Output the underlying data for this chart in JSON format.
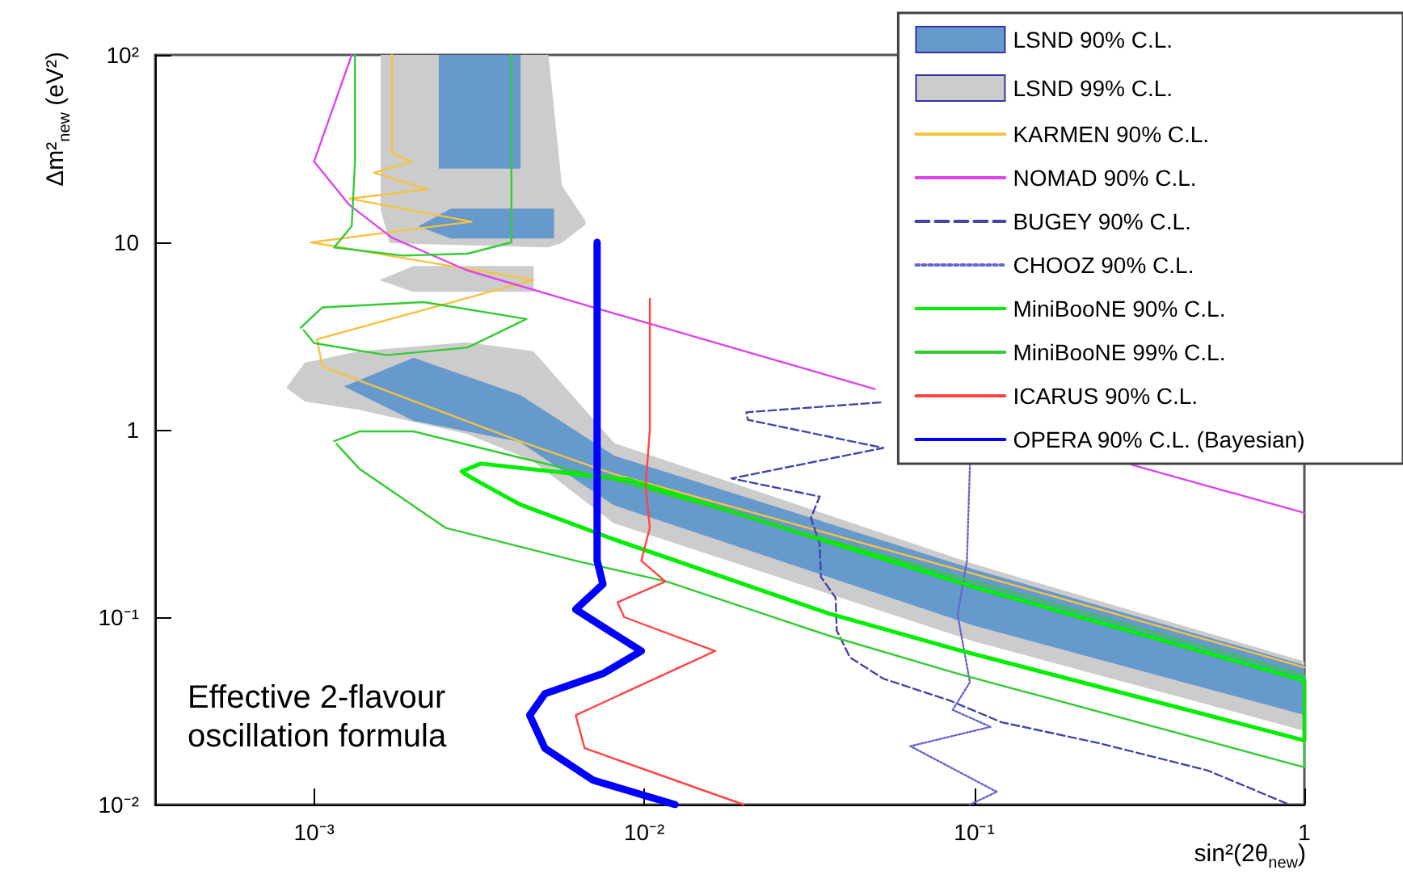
{
  "chart_data": {
    "type": "line",
    "xlabel": "sin²(2θ$_{new}$)",
    "ylabel": "Δm²$_{new}$ (eV²)",
    "log": "xy",
    "grid": false,
    "legend": "top right",
    "marker": "none",
    "xlim": [
      0.00033,
      1
    ],
    "ylim": [
      0.01,
      100
    ],
    "xticks": [
      {
        "value": 0.001,
        "label": "10⁻³"
      },
      {
        "value": 0.01,
        "label": "10⁻²"
      },
      {
        "value": 0.1,
        "label": "10⁻¹"
      },
      1
    ],
    "yticks": [
      {
        "value": 0.01,
        "label": "10⁻²"
      },
      {
        "value": 0.1,
        "label": "10⁻¹"
      },
      1,
      10,
      {
        "value": 100,
        "label": "10²"
      }
    ],
    "annotations": [
      "Effective 2-flavour oscillation formula"
    ],
    "series": [
      {
        "name": "LSND 90% C.L.",
        "type": "area",
        "color": "#6699cc",
        "x": [
          0.00125,
          0.002,
          0.0042,
          0.0081,
          0.1,
          1,
          1,
          0.1,
          0.0081,
          0.0042,
          0.002,
          null,
          0.0024,
          0.0042,
          0.0042,
          0.0024,
          null,
          0.0021,
          0.0026,
          0.0053,
          0.0053,
          0.0026
        ],
        "values": [
          1.7,
          2.4,
          1.52,
          0.72,
          0.178,
          0.055,
          0.0304,
          0.091,
          0.4,
          0.87,
          1.13,
          null,
          100,
          100,
          25,
          25,
          null,
          12.2,
          15,
          15,
          10.6,
          10.6
        ]
      },
      {
        "name": "LSND 99% C.L.",
        "type": "area",
        "color": "#cccccc",
        "x": [
          0.00083,
          0.00094,
          0.00137,
          0.0029,
          0.0046,
          0.0081,
          0.1,
          1,
          1,
          0.1,
          0.0081,
          0.0046,
          0.0029,
          0.00137,
          0.00094,
          null,
          0.0016,
          0.0051,
          0.0056,
          0.0066,
          0.0066,
          0.0056,
          0.0051,
          0.0017,
          0.0016,
          null,
          0.0016,
          0.002,
          0.0046,
          0.0046,
          0.002
        ],
        "values": [
          1.68,
          2.26,
          2.6,
          2.9,
          2.6,
          0.84,
          0.19,
          0.0575,
          0.025,
          0.075,
          0.32,
          0.69,
          0.96,
          1.29,
          1.43,
          null,
          100,
          100,
          20,
          13,
          12.5,
          10,
          9.5,
          10,
          15,
          null,
          6.3,
          7.4,
          7.4,
          5.5,
          5.5
        ]
      },
      {
        "name": "KARMEN 90% C.L.",
        "color": "#f5c242",
        "x": [
          0.00172,
          0.00172,
          0.00197,
          0.00152,
          0.0022,
          0.00128,
          0.003,
          0.00098,
          0.0046,
          0.00102,
          0.00106,
          0.0042,
          0.0081,
          0.1,
          1
        ],
        "values": [
          100,
          30,
          27,
          23.5,
          19.2,
          17.1,
          12.9,
          10,
          6.3,
          3.04,
          2.17,
          0.87,
          0.58,
          0.17,
          0.054
        ]
      },
      {
        "name": "NOMAD 90% C.L.",
        "color": "#dd44ee",
        "x": [
          0.0013,
          0.001,
          0.00128,
          0.00172,
          0.0029,
          0.007,
          0.05,
          null,
          0.3,
          1
        ],
        "values": [
          100,
          27,
          15.8,
          10.6,
          7.1,
          4.5,
          1.65,
          null,
          0.65,
          0.36
        ]
      },
      {
        "name": "BUGEY 90% C.L.",
        "color": "#4444aa",
        "line_style": "dashed",
        "x": [
          0.052,
          0.0204,
          0.0206,
          0.053,
          0.0184,
          0.034,
          0.032,
          0.034,
          0.0343,
          0.038,
          0.0383,
          0.042,
          0.053,
          0.084,
          0.121,
          0.238,
          0.51,
          0.9
        ],
        "values": [
          1.4,
          1.24,
          1.13,
          0.8,
          0.55,
          0.44,
          0.34,
          0.245,
          0.164,
          0.127,
          0.085,
          0.061,
          0.047,
          0.036,
          0.0275,
          0.0213,
          0.0152,
          0.01
        ]
      },
      {
        "name": "CHOOZ 90% C.L.",
        "color": "#6666cc",
        "line_style": "dotted",
        "x": [
          0.097,
          0.095,
          0.089,
          0.097,
          0.086,
          0.112,
          0.064,
          0.117,
          0.097
        ],
        "values": [
          0.66,
          0.2,
          0.103,
          0.045,
          0.032,
          0.026,
          0.0205,
          0.0117,
          0.01
        ]
      },
      {
        "name": "MiniBooNE 90% C.L.",
        "color": "#00ee00",
        "x": [
          0.0028,
          0.0032,
          0.009,
          0.1,
          1,
          1,
          0.089,
          0.036,
          0.0081,
          0.0042,
          0.0032,
          0.00285
        ],
        "values": [
          0.6,
          0.66,
          0.54,
          0.145,
          0.046,
          0.022,
          0.067,
          0.105,
          0.26,
          0.4,
          0.52,
          0.585
        ]
      },
      {
        "name": "MiniBooNE 99% C.L.",
        "color": "#33cc33",
        "x": [
          0.00133,
          0.00133,
          0.0013,
          0.00115,
          0.00186,
          0.00292,
          0.00396,
          0.00396,
          0.00396,
          null,
          0.00091,
          0.00106,
          0.00215,
          0.0044,
          0.00292,
          0.00166,
          0.001,
          0.00093,
          null,
          0.00115,
          0.00137,
          0.002,
          0.0042,
          0.0081,
          0.036,
          0.1,
          1,
          1,
          0.089,
          0.036,
          0.0117,
          0.0062,
          0.0025,
          0.00137,
          0.00117
        ],
        "values": [
          100,
          27,
          12.2,
          9.4,
          8.5,
          8.7,
          10,
          27,
          100,
          null,
          3.5,
          4.5,
          4.8,
          3.9,
          2.75,
          2.5,
          2.9,
          3.4,
          null,
          0.87,
          0.98,
          0.98,
          0.71,
          0.54,
          0.26,
          0.155,
          0.049,
          0.0158,
          0.05,
          0.08,
          0.155,
          0.2,
          0.3,
          0.62,
          0.84
        ]
      },
      {
        "name": "ICARUS 90% C.L.",
        "color": "#ff4444",
        "x": [
          0.0104,
          0.0104,
          0.0101,
          0.0104,
          0.0098,
          0.0116,
          0.0083,
          0.0087,
          0.0164,
          0.0062,
          0.0066,
          0.02
        ],
        "values": [
          5,
          1,
          0.5,
          0.3,
          0.2,
          0.155,
          0.12,
          0.1,
          0.066,
          0.03,
          0.02,
          0.01
        ]
      },
      {
        "name": "OPERA 90% C.L. (Bayesian)",
        "color": "#0000ff",
        "x": [
          0.0072,
          0.0072,
          0.0072,
          0.0075,
          0.0062,
          0.0078,
          0.0098,
          0.0075,
          0.005,
          0.0045,
          0.005,
          0.007,
          0.0124
        ],
        "values": [
          10,
          0.5,
          0.2,
          0.15,
          0.11,
          0.085,
          0.066,
          0.05,
          0.039,
          0.03,
          0.02,
          0.0135,
          0.01
        ]
      }
    ]
  }
}
